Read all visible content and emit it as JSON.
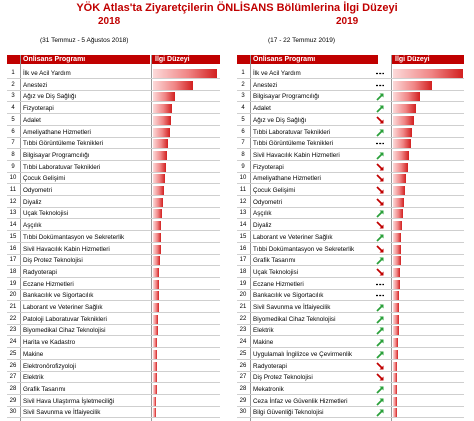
{
  "title": "YÖK Atlas'ta Ziyaretçilerin ÖNLİSANS Bölümlerina İlgi Düzeyi",
  "colors": {
    "accent": "#c00000",
    "up": "#2aa03a",
    "down": "#c00000"
  },
  "chart_data": [
    {
      "type": "bar",
      "year": "2018",
      "period": "(31 Temmuz - 5 Ağustos 2018)",
      "header_program": "Önlisans Programı",
      "header_level": "İlgi Düzeyi",
      "rows": [
        {
          "rank": "1",
          "name": "İlk ve Acil Yardım",
          "value": 100
        },
        {
          "rank": "2",
          "name": "Anestezi",
          "value": 62
        },
        {
          "rank": "3",
          "name": "Ağız ve Diş Sağlığı",
          "value": 35
        },
        {
          "rank": "4",
          "name": "Fizyoterapi",
          "value": 30
        },
        {
          "rank": "5",
          "name": "Adalet",
          "value": 28
        },
        {
          "rank": "6",
          "name": "Ameliyathane Hizmetleri",
          "value": 26
        },
        {
          "rank": "7",
          "name": "Tıbbi Görüntüleme Teknikleri",
          "value": 24
        },
        {
          "rank": "8",
          "name": "Bilgisayar Programcılığı",
          "value": 22
        },
        {
          "rank": "9",
          "name": "Tıbbi Laboratuvar Teknikleri",
          "value": 21
        },
        {
          "rank": "10",
          "name": "Çocuk Gelişimi",
          "value": 19
        },
        {
          "rank": "11",
          "name": "Odyometri",
          "value": 17
        },
        {
          "rank": "12",
          "name": "Diyaliz",
          "value": 15
        },
        {
          "rank": "13",
          "name": "Uçak Teknolojisi",
          "value": 14
        },
        {
          "rank": "14",
          "name": "Aşçılık",
          "value": 13
        },
        {
          "rank": "15",
          "name": "Tıbbi Dokümantasyon ve Sekreterlik",
          "value": 12
        },
        {
          "rank": "16",
          "name": "Sivil Havacılık Kabin Hizmetleri",
          "value": 12
        },
        {
          "rank": "17",
          "name": "Diş Protez Teknolojisi",
          "value": 11
        },
        {
          "rank": "18",
          "name": "Radyoterapi",
          "value": 10
        },
        {
          "rank": "19",
          "name": "Eczane Hizmetleri",
          "value": 10
        },
        {
          "rank": "20",
          "name": "Bankacılık ve Sigortacılık",
          "value": 9
        },
        {
          "rank": "21",
          "name": "Laborant ve Veteriner Sağlık",
          "value": 9
        },
        {
          "rank": "22",
          "name": "Patoloji Laboratuvar Teknikleri",
          "value": 8
        },
        {
          "rank": "23",
          "name": "Biyomedikal Cihaz Teknolojisi",
          "value": 8
        },
        {
          "rank": "24",
          "name": "Harita ve Kadastro",
          "value": 7
        },
        {
          "rank": "25",
          "name": "Makine",
          "value": 7
        },
        {
          "rank": "26",
          "name": "Elektronörofizyoloji",
          "value": 6
        },
        {
          "rank": "27",
          "name": "Elektrik",
          "value": 6
        },
        {
          "rank": "28",
          "name": "Grafik Tasarımı",
          "value": 6
        },
        {
          "rank": "29",
          "name": "Sivil Hava Ulaştırma İşletmeciliği",
          "value": 5
        },
        {
          "rank": "30",
          "name": "Sivil Savunma ve İtfaiyecilik",
          "value": 5
        }
      ]
    },
    {
      "type": "bar",
      "year": "2019",
      "period": "(17 - 22 Temmuz 2019)",
      "header_program": "Önlisans Programı",
      "header_level": "İlgi Düzeyi",
      "rows": [
        {
          "rank": "1",
          "name": "İlk ve Acil Yardım",
          "value": 100,
          "trend": "same"
        },
        {
          "rank": "2",
          "name": "Anestezi",
          "value": 55,
          "trend": "same"
        },
        {
          "rank": "3",
          "name": "Bilgisayar Programcılığı",
          "value": 38,
          "trend": "up"
        },
        {
          "rank": "4",
          "name": "Adalet",
          "value": 33,
          "trend": "up"
        },
        {
          "rank": "5",
          "name": "Ağız ve Diş Sağlığı",
          "value": 30,
          "trend": "down"
        },
        {
          "rank": "6",
          "name": "Tıbbi Laboratuvar Teknikleri",
          "value": 27,
          "trend": "up"
        },
        {
          "rank": "7",
          "name": "Tıbbi Görüntüleme Teknikleri",
          "value": 25,
          "trend": "same"
        },
        {
          "rank": "8",
          "name": "Sivil Havacılık Kabin Hizmetleri",
          "value": 23,
          "trend": "up"
        },
        {
          "rank": "9",
          "name": "Fizyoterapi",
          "value": 21,
          "trend": "down"
        },
        {
          "rank": "10",
          "name": "Ameliyathane Hizmetleri",
          "value": 19,
          "trend": "down"
        },
        {
          "rank": "11",
          "name": "Çocuk Gelişimi",
          "value": 17,
          "trend": "down"
        },
        {
          "rank": "12",
          "name": "Odyometri",
          "value": 15,
          "trend": "down"
        },
        {
          "rank": "13",
          "name": "Aşçılık",
          "value": 14,
          "trend": "up"
        },
        {
          "rank": "14",
          "name": "Diyaliz",
          "value": 13,
          "trend": "down"
        },
        {
          "rank": "15",
          "name": "Laborant ve Veteriner Sağlık",
          "value": 12,
          "trend": "up"
        },
        {
          "rank": "16",
          "name": "Tıbbi Dokümantasyon ve Sekreterlik",
          "value": 11,
          "trend": "down"
        },
        {
          "rank": "17",
          "name": "Grafik Tasarımı",
          "value": 11,
          "trend": "up"
        },
        {
          "rank": "18",
          "name": "Uçak Teknolojisi",
          "value": 10,
          "trend": "down"
        },
        {
          "rank": "19",
          "name": "Eczane Hizmetleri",
          "value": 10,
          "trend": "same"
        },
        {
          "rank": "20",
          "name": "Bankacılık ve Sigortacılık",
          "value": 9,
          "trend": "same"
        },
        {
          "rank": "21",
          "name": "Sivil Savunma ve İtfaiyecilik",
          "value": 9,
          "trend": "up"
        },
        {
          "rank": "22",
          "name": "Biyomedikal Cihaz Teknolojisi",
          "value": 8,
          "trend": "up"
        },
        {
          "rank": "23",
          "name": "Elektrik",
          "value": 8,
          "trend": "up"
        },
        {
          "rank": "24",
          "name": "Makine",
          "value": 7,
          "trend": "up"
        },
        {
          "rank": "25",
          "name": "Uygulamalı İngilizce ve Çevirmenlik",
          "value": 7,
          "trend": "up"
        },
        {
          "rank": "26",
          "name": "Radyoterapi",
          "value": 6,
          "trend": "down"
        },
        {
          "rank": "27",
          "name": "Diş Protez Teknolojisi",
          "value": 6,
          "trend": "down"
        },
        {
          "rank": "28",
          "name": "Mekatronik",
          "value": 6,
          "trend": "up"
        },
        {
          "rank": "29",
          "name": "Ceza İnfaz ve Güvenlik Hizmetleri",
          "value": 5,
          "trend": "up"
        },
        {
          "rank": "30",
          "name": "Bilgi Güvenliği Teknolojisi",
          "value": 5,
          "trend": "up"
        }
      ]
    }
  ]
}
